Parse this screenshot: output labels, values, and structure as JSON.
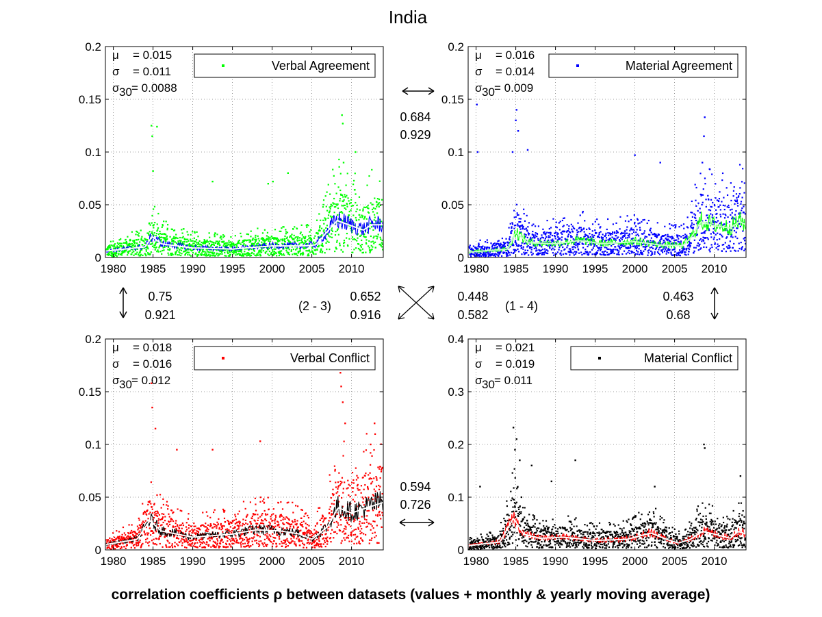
{
  "title": "India",
  "caption": "correlation coefficients ρ between datasets (values + monthly & yearly moving average)",
  "correlations": {
    "top": {
      "a": "0.684",
      "b": "0.929"
    },
    "bottom": {
      "a": "0.594",
      "b": "0.726"
    },
    "left": {
      "a": "0.75",
      "b": "0.921"
    },
    "right": {
      "a": "0.463",
      "b": "0.68"
    },
    "diag_23": {
      "label": "(2 - 3)",
      "a": "0.652",
      "b": "0.916"
    },
    "diag_14": {
      "label": "(1 - 4)",
      "a": "0.448",
      "b": "0.582"
    }
  },
  "chart_data": [
    {
      "type": "scatter",
      "series": [
        {
          "name": "Verbal Agreement",
          "color": "#00ff00"
        }
      ],
      "line_color": "#0000ff",
      "avg_color": "#ffffff",
      "stats": {
        "mu": "= 0.015",
        "sigma": "= 0.011",
        "sigma30": "= 0.0088"
      },
      "xlim": [
        1979,
        2014
      ],
      "ylim": [
        0,
        0.2
      ],
      "xticks": [
        "1980",
        "1985",
        "1990",
        "1995",
        "2000",
        "2005",
        "2010"
      ],
      "yticks": [
        "0",
        "0.05",
        "0.1",
        "0.15",
        "0.2"
      ],
      "grid": true,
      "legend": "top-right",
      "profile": [
        [
          1979,
          0.006
        ],
        [
          1984,
          0.01
        ],
        [
          1984.9,
          0.02
        ],
        [
          1986,
          0.013
        ],
        [
          1990,
          0.009
        ],
        [
          1995,
          0.008
        ],
        [
          2000,
          0.011
        ],
        [
          2004,
          0.011
        ],
        [
          2005.5,
          0.012
        ],
        [
          2007,
          0.025
        ],
        [
          2008.2,
          0.035
        ],
        [
          2010,
          0.03
        ],
        [
          2011.5,
          0.026
        ],
        [
          2012.5,
          0.031
        ],
        [
          2014,
          0.031
        ]
      ],
      "spikes": [
        [
          1984.8,
          0.125
        ],
        [
          1985.5,
          0.124
        ],
        [
          1984.9,
          0.115
        ],
        [
          2008.8,
          0.135
        ],
        [
          2008.9,
          0.127
        ],
        [
          2010.5,
          0.1
        ],
        [
          1999.5,
          0.07
        ],
        [
          2000.1,
          0.072
        ],
        [
          2002,
          0.08
        ],
        [
          1992.5,
          0.072
        ],
        [
          1985,
          0.082
        ],
        [
          2009,
          0.09
        ]
      ]
    },
    {
      "type": "scatter",
      "series": [
        {
          "name": "Material Agreement",
          "color": "#0000ff"
        }
      ],
      "line_color": "#00ff00",
      "avg_color": "#c8ffc8",
      "stats": {
        "mu": "= 0.016",
        "sigma": "= 0.014",
        "sigma30": "= 0.009"
      },
      "xlim": [
        1979,
        2014
      ],
      "ylim": [
        0,
        0.2
      ],
      "xticks": [
        "1980",
        "1985",
        "1990",
        "1995",
        "2000",
        "2005",
        "2010"
      ],
      "yticks": [
        "0",
        "0.05",
        "0.1",
        "0.15",
        "0.2"
      ],
      "grid": true,
      "legend": "top-right",
      "profile": [
        [
          1979,
          0.005
        ],
        [
          1984,
          0.008
        ],
        [
          1985,
          0.024
        ],
        [
          1986.5,
          0.014
        ],
        [
          1990,
          0.013
        ],
        [
          1993,
          0.016
        ],
        [
          1996,
          0.013
        ],
        [
          2000,
          0.015
        ],
        [
          2003,
          0.012
        ],
        [
          2006,
          0.011
        ],
        [
          2007.2,
          0.02
        ],
        [
          2008.3,
          0.034
        ],
        [
          2010,
          0.03
        ],
        [
          2012,
          0.028
        ],
        [
          2013.2,
          0.034
        ],
        [
          2014,
          0.031
        ]
      ],
      "spikes": [
        [
          1980.1,
          0.145
        ],
        [
          1985.1,
          0.14
        ],
        [
          1985,
          0.13
        ],
        [
          1985.3,
          0.12
        ],
        [
          2008.8,
          0.133
        ],
        [
          2008.7,
          0.115
        ],
        [
          2000,
          0.097
        ],
        [
          1984.6,
          0.1
        ],
        [
          2008.5,
          0.09
        ],
        [
          1980.2,
          0.1
        ],
        [
          1986.5,
          0.102
        ],
        [
          2003.2,
          0.09
        ]
      ]
    },
    {
      "type": "scatter",
      "series": [
        {
          "name": "Verbal Conflict",
          "color": "#ff0000"
        }
      ],
      "line_color": "#000000",
      "avg_color": "#ffffff",
      "stats": {
        "mu": "= 0.018",
        "sigma": "= 0.016",
        "sigma30": "= 0.012"
      },
      "xlim": [
        1979,
        2014
      ],
      "ylim": [
        0,
        0.2
      ],
      "xticks": [
        "1980",
        "1985",
        "1990",
        "1995",
        "2000",
        "2005",
        "2010"
      ],
      "yticks": [
        "0",
        "0.05",
        "0.1",
        "0.15",
        "0.2"
      ],
      "grid": true,
      "legend": "top-right",
      "profile": [
        [
          1979,
          0.005
        ],
        [
          1983,
          0.01
        ],
        [
          1984.6,
          0.028
        ],
        [
          1986,
          0.018
        ],
        [
          1990,
          0.012
        ],
        [
          1995,
          0.015
        ],
        [
          1998,
          0.019
        ],
        [
          2001,
          0.018
        ],
        [
          2003.5,
          0.015
        ],
        [
          2005,
          0.01
        ],
        [
          2007,
          0.022
        ],
        [
          2008.3,
          0.04
        ],
        [
          2010,
          0.035
        ],
        [
          2012,
          0.04
        ],
        [
          2014,
          0.045
        ]
      ],
      "spikes": [
        [
          1984.8,
          0.158
        ],
        [
          1984.9,
          0.135
        ],
        [
          2008.6,
          0.168
        ],
        [
          2008.7,
          0.155
        ],
        [
          1998.5,
          0.103
        ],
        [
          2012.9,
          0.12
        ],
        [
          1985.3,
          0.115
        ],
        [
          2008.9,
          0.14
        ],
        [
          1992.5,
          0.095
        ],
        [
          2012.4,
          0.1
        ],
        [
          1988,
          0.095
        ],
        [
          2009.2,
          0.12
        ]
      ]
    },
    {
      "type": "scatter",
      "series": [
        {
          "name": "Material Conflict",
          "color": "#000000"
        }
      ],
      "line_color": "#ff0000",
      "avg_color": "#ffffff",
      "stats": {
        "mu": "= 0.021",
        "sigma": "= 0.019",
        "sigma30": "= 0.011"
      },
      "xlim": [
        1979,
        2014
      ],
      "ylim": [
        0,
        0.4
      ],
      "xticks": [
        "1980",
        "1985",
        "1990",
        "1995",
        "2000",
        "2005",
        "2010"
      ],
      "yticks": [
        "0",
        "0.1",
        "0.2",
        "0.3",
        "0.4"
      ],
      "grid": true,
      "legend": "top-right",
      "profile": [
        [
          1979,
          0.008
        ],
        [
          1983,
          0.015
        ],
        [
          1984.7,
          0.06
        ],
        [
          1986,
          0.03
        ],
        [
          1988,
          0.022
        ],
        [
          1991,
          0.024
        ],
        [
          1995,
          0.018
        ],
        [
          1999,
          0.02
        ],
        [
          2002,
          0.032
        ],
        [
          2004,
          0.02
        ],
        [
          2005.5,
          0.013
        ],
        [
          2007,
          0.02
        ],
        [
          2008.5,
          0.035
        ],
        [
          2010,
          0.03
        ],
        [
          2012,
          0.022
        ],
        [
          2013,
          0.035
        ],
        [
          2014,
          0.03
        ]
      ],
      "spikes": [
        [
          1984.7,
          0.232
        ],
        [
          1985.1,
          0.21
        ],
        [
          1984.9,
          0.19
        ],
        [
          1985.5,
          0.17
        ],
        [
          2008.7,
          0.2
        ],
        [
          2008.8,
          0.193
        ],
        [
          1992.5,
          0.17
        ],
        [
          2013.3,
          0.14
        ],
        [
          1980.5,
          0.12
        ],
        [
          1987,
          0.16
        ],
        [
          2002.5,
          0.12
        ],
        [
          1989.5,
          0.13
        ]
      ]
    }
  ]
}
